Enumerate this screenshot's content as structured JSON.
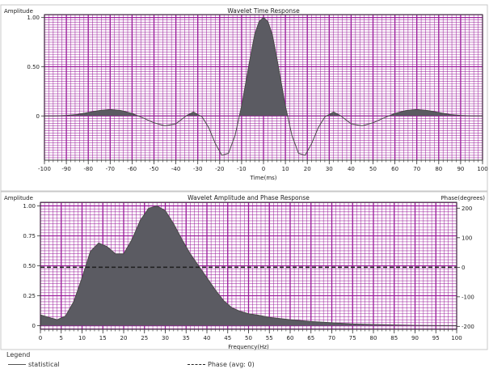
{
  "chart_data": [
    {
      "type": "area",
      "title": "Wavelet Time Response",
      "xlabel": "Time(ms)",
      "ylabel": "Amplitude",
      "xlim": [
        -100,
        100
      ],
      "ylim": [
        -0.45,
        1.03
      ],
      "xticks": [
        -100,
        -90,
        -80,
        -70,
        -60,
        -50,
        -40,
        -30,
        -20,
        -10,
        0,
        10,
        20,
        30,
        40,
        50,
        60,
        70,
        80,
        90,
        100
      ],
      "yticks": [
        {
          "value": 1.0,
          "label": "1.00"
        },
        {
          "value": 0.5,
          "label": "0.50"
        },
        {
          "value": 0.0,
          "label": "0"
        }
      ],
      "grid": true,
      "series": [
        {
          "x": [
            -100,
            -95,
            -90,
            -85,
            -80,
            -75,
            -70,
            -65,
            -60,
            -55,
            -50,
            -45,
            -40,
            -35,
            -32,
            -28,
            -25,
            -22,
            -19,
            -16,
            -13,
            -10,
            -8,
            -6,
            -4,
            -2,
            0,
            2,
            4,
            6,
            8,
            10,
            13,
            16,
            19,
            22,
            25,
            28,
            32,
            35,
            40,
            45,
            50,
            55,
            60,
            65,
            70,
            75,
            80,
            85,
            90,
            95,
            100
          ],
          "y": [
            0,
            0,
            0.005,
            0.015,
            0.035,
            0.055,
            0.065,
            0.055,
            0.025,
            -0.02,
            -0.07,
            -0.1,
            -0.08,
            0.005,
            0.04,
            -0.01,
            -0.12,
            -0.28,
            -0.4,
            -0.38,
            -0.2,
            0.1,
            0.35,
            0.6,
            0.83,
            0.96,
            1.0,
            0.96,
            0.83,
            0.6,
            0.35,
            0.1,
            -0.2,
            -0.38,
            -0.4,
            -0.28,
            -0.12,
            -0.01,
            0.04,
            0.005,
            -0.08,
            -0.1,
            -0.07,
            -0.02,
            0.025,
            0.055,
            0.065,
            0.055,
            0.035,
            0.015,
            0.005,
            0,
            0
          ]
        }
      ]
    },
    {
      "type": "area",
      "title": "Wavelet Amplitude and Phase Response",
      "xlabel": "Frequency(Hz)",
      "ylabel": "Amplitude",
      "y2label": "Phase(degrees)",
      "xlim": [
        0,
        100
      ],
      "ylim": [
        -0.03,
        1.03
      ],
      "y2lim": [
        -210,
        220
      ],
      "xticks": [
        0,
        5,
        10,
        15,
        20,
        25,
        30,
        35,
        40,
        45,
        50,
        55,
        60,
        65,
        70,
        75,
        80,
        85,
        90,
        95,
        100
      ],
      "yticks": [
        {
          "value": 1.0,
          "label": "1.00"
        },
        {
          "value": 0.75,
          "label": "0.75"
        },
        {
          "value": 0.5,
          "label": "0.50"
        },
        {
          "value": 0.25,
          "label": "0.25"
        },
        {
          "value": 0.0,
          "label": "0"
        }
      ],
      "y2ticks": [
        {
          "value": 200,
          "label": "200"
        },
        {
          "value": 100,
          "label": "100"
        },
        {
          "value": 0,
          "label": "0"
        },
        {
          "value": -100,
          "label": "-100"
        },
        {
          "value": -200,
          "label": "-200"
        }
      ],
      "grid": true,
      "legend": {
        "title": "Legend",
        "position": "bottom-left",
        "entries": [
          {
            "label": "statistical",
            "style": "solid"
          },
          {
            "label": "Phase (avg: 0)",
            "style": "dashed"
          }
        ]
      },
      "series": [
        {
          "name": "statistical",
          "x": [
            0,
            2,
            4,
            6,
            8,
            10,
            12,
            14,
            16,
            18,
            20,
            22,
            24,
            26,
            28,
            30,
            32,
            34,
            36,
            38,
            40,
            42,
            44,
            46,
            48,
            50,
            52,
            55,
            60,
            65,
            70,
            75,
            80,
            85,
            90,
            95,
            100
          ],
          "y": [
            0.09,
            0.07,
            0.05,
            0.08,
            0.2,
            0.4,
            0.62,
            0.69,
            0.66,
            0.6,
            0.6,
            0.72,
            0.88,
            0.98,
            1.0,
            0.96,
            0.85,
            0.72,
            0.6,
            0.5,
            0.4,
            0.3,
            0.21,
            0.15,
            0.12,
            0.1,
            0.09,
            0.07,
            0.05,
            0.035,
            0.025,
            0.015,
            0.01,
            0.006,
            0.003,
            0.001,
            0
          ]
        },
        {
          "name": "Phase (avg: 0)",
          "axis": "y2",
          "x": [
            0,
            100
          ],
          "y": [
            0,
            0
          ]
        }
      ]
    }
  ]
}
